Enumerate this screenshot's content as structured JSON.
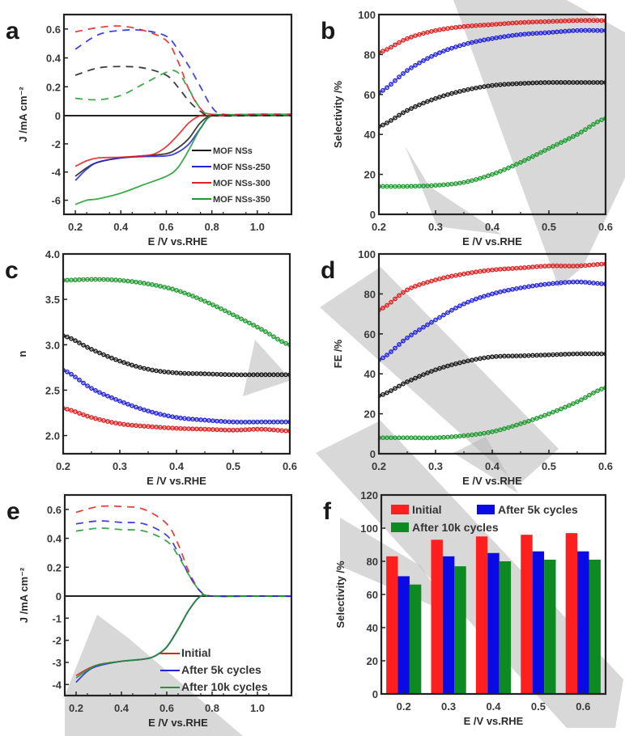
{
  "figure": {
    "watermark_color": "#b8b8b8"
  },
  "colors": {
    "black": "#1a1a1a",
    "blue": "#2222dd",
    "red": "#e02020",
    "green": "#1f9a2f",
    "bar_red": "#ff1f1f",
    "bar_blue": "#0a0ae6",
    "bar_green": "#0d8a22"
  },
  "chart_data": [
    {
      "id": "a",
      "panel_label": "a",
      "type": "line",
      "title": "",
      "xlabel": "E /V vs.RHE",
      "ylabel": "J /mA cm⁻²",
      "xlim": [
        0.15,
        1.15
      ],
      "ylim": [
        -7,
        0.7
      ],
      "xticks": [
        "0.2",
        "0.4",
        "0.6",
        "0.8",
        "1.0"
      ],
      "xtick_values": [
        0.2,
        0.4,
        0.6,
        0.8,
        1.0
      ],
      "yticks": [
        "0.6",
        "0.4",
        "0.2",
        "0",
        "-2",
        "-4",
        "-6"
      ],
      "ytick_values": [
        0.6,
        0.4,
        0.2,
        0,
        -2,
        -4,
        -6
      ],
      "note": "Broken y-scale: positive (ring) region 0–0.7 expanded, negative (disk) region 0 to −7 compressed",
      "legend": {
        "placement": "bottom-right",
        "entries": [
          "MOF NSs",
          "MOF NSs-250",
          "MOF NSs-300",
          "MOF NSs-350"
        ]
      },
      "series": [
        {
          "name": "MOF NSs",
          "color_key": "black",
          "style": "solid",
          "x": [
            0.2,
            0.25,
            0.3,
            0.4,
            0.5,
            0.6,
            0.65,
            0.7,
            0.75,
            0.8,
            0.9,
            1.0,
            1.15
          ],
          "y": [
            -4.3,
            -3.7,
            -3.3,
            -3.0,
            -2.85,
            -2.7,
            -2.3,
            -1.6,
            -0.5,
            0,
            0,
            0,
            0
          ]
        },
        {
          "name": "MOF NSs-250",
          "color_key": "blue",
          "style": "solid",
          "x": [
            0.2,
            0.25,
            0.3,
            0.4,
            0.5,
            0.6,
            0.65,
            0.7,
            0.75,
            0.8,
            0.9,
            1.0,
            1.15
          ],
          "y": [
            -4.6,
            -3.8,
            -3.3,
            -3.0,
            -2.9,
            -2.85,
            -2.6,
            -2.0,
            -0.9,
            0,
            0,
            0,
            0
          ]
        },
        {
          "name": "MOF NSs-300",
          "color_key": "red",
          "style": "solid",
          "x": [
            0.2,
            0.25,
            0.3,
            0.4,
            0.5,
            0.55,
            0.6,
            0.65,
            0.7,
            0.75,
            0.8,
            1.0,
            1.15
          ],
          "y": [
            -3.6,
            -3.2,
            -3.0,
            -2.95,
            -2.85,
            -2.7,
            -2.2,
            -1.4,
            -0.5,
            0,
            0,
            0,
            0
          ]
        },
        {
          "name": "MOF NSs-350",
          "color_key": "green",
          "style": "solid",
          "x": [
            0.2,
            0.25,
            0.3,
            0.4,
            0.5,
            0.6,
            0.65,
            0.7,
            0.75,
            0.8,
            0.9,
            1.0,
            1.15
          ],
          "y": [
            -6.3,
            -6.0,
            -5.9,
            -5.5,
            -4.9,
            -4.3,
            -3.7,
            -2.4,
            -0.9,
            0,
            0,
            0,
            0
          ]
        },
        {
          "name": "MOF NSs (ring)",
          "color_key": "black",
          "style": "dashed",
          "x": [
            0.2,
            0.3,
            0.4,
            0.5,
            0.6,
            0.65,
            0.7,
            0.75,
            0.8,
            1.0,
            1.15
          ],
          "y": [
            0.28,
            0.33,
            0.34,
            0.33,
            0.28,
            0.2,
            0.1,
            0.03,
            0.0,
            0.0,
            0.0
          ]
        },
        {
          "name": "MOF NSs-250 (ring)",
          "color_key": "blue",
          "style": "dashed",
          "x": [
            0.2,
            0.3,
            0.4,
            0.5,
            0.6,
            0.65,
            0.7,
            0.75,
            0.8,
            0.85,
            1.0,
            1.15
          ],
          "y": [
            0.46,
            0.56,
            0.59,
            0.59,
            0.55,
            0.46,
            0.34,
            0.2,
            0.06,
            0.01,
            0.01,
            0.01
          ]
        },
        {
          "name": "MOF NSs-300 (ring)",
          "color_key": "red",
          "style": "dashed",
          "x": [
            0.2,
            0.3,
            0.4,
            0.5,
            0.6,
            0.65,
            0.7,
            0.75,
            0.8,
            1.0,
            1.15
          ],
          "y": [
            0.58,
            0.61,
            0.62,
            0.59,
            0.52,
            0.38,
            0.18,
            0.05,
            0.01,
            0.01,
            0.01
          ]
        },
        {
          "name": "MOF NSs-350 (ring)",
          "color_key": "green",
          "style": "dashed",
          "x": [
            0.2,
            0.3,
            0.4,
            0.5,
            0.6,
            0.65,
            0.7,
            0.75,
            0.8,
            1.0,
            1.15
          ],
          "y": [
            0.12,
            0.11,
            0.14,
            0.22,
            0.3,
            0.3,
            0.18,
            0.05,
            0.01,
            0.01,
            0.01
          ]
        }
      ]
    },
    {
      "id": "b",
      "panel_label": "b",
      "type": "scatter",
      "title": "",
      "xlabel": "E /V vs.RHE",
      "ylabel": "Selectivity /%",
      "xlim": [
        0.2,
        0.6
      ],
      "ylim": [
        0,
        100
      ],
      "xticks": [
        "0.2",
        "0.3",
        "0.4",
        "0.5",
        "0.6"
      ],
      "xtick_values": [
        0.2,
        0.3,
        0.4,
        0.5,
        0.6
      ],
      "yticks": [
        "0",
        "20",
        "40",
        "60",
        "80",
        "100"
      ],
      "ytick_values": [
        0,
        20,
        40,
        60,
        80,
        100
      ],
      "series": [
        {
          "name": "MOF NSs-300",
          "color_key": "red",
          "x": [
            0.2,
            0.25,
            0.3,
            0.35,
            0.4,
            0.45,
            0.5,
            0.55,
            0.6
          ],
          "y": [
            81,
            88,
            92,
            94,
            95,
            96,
            96.5,
            97,
            97
          ]
        },
        {
          "name": "MOF NSs-250",
          "color_key": "blue",
          "x": [
            0.2,
            0.25,
            0.3,
            0.35,
            0.4,
            0.45,
            0.5,
            0.55,
            0.6
          ],
          "y": [
            61,
            72,
            80,
            85,
            88,
            90,
            91,
            92,
            92
          ]
        },
        {
          "name": "MOF NSs",
          "color_key": "black",
          "x": [
            0.2,
            0.25,
            0.3,
            0.35,
            0.4,
            0.45,
            0.5,
            0.55,
            0.6
          ],
          "y": [
            44,
            52,
            58,
            62,
            64.5,
            65.5,
            66,
            66,
            66
          ]
        },
        {
          "name": "MOF NSs-350",
          "color_key": "green",
          "x": [
            0.2,
            0.25,
            0.3,
            0.35,
            0.4,
            0.45,
            0.5,
            0.55,
            0.6
          ],
          "y": [
            14,
            14,
            14.5,
            16,
            20,
            26,
            33,
            40,
            48
          ]
        }
      ]
    },
    {
      "id": "c",
      "panel_label": "c",
      "type": "scatter",
      "title": "",
      "xlabel": "E /V vs.RHE",
      "ylabel": "n",
      "xlim": [
        0.2,
        0.6
      ],
      "ylim": [
        1.8,
        4.0
      ],
      "xticks": [
        "0.2",
        "0.3",
        "0.4",
        "0.5",
        "0.6"
      ],
      "xtick_values": [
        0.2,
        0.3,
        0.4,
        0.5,
        0.6
      ],
      "yticks": [
        "2.0",
        "2.5",
        "3.0",
        "3.5",
        "4.0"
      ],
      "ytick_values": [
        2.0,
        2.5,
        3.0,
        3.5,
        4.0
      ],
      "series": [
        {
          "name": "MOF NSs-350",
          "color_key": "green",
          "x": [
            0.2,
            0.25,
            0.3,
            0.35,
            0.4,
            0.45,
            0.5,
            0.55,
            0.6
          ],
          "y": [
            3.71,
            3.72,
            3.71,
            3.67,
            3.6,
            3.48,
            3.33,
            3.17,
            3.0
          ]
        },
        {
          "name": "MOF NSs",
          "color_key": "black",
          "x": [
            0.2,
            0.25,
            0.3,
            0.35,
            0.4,
            0.45,
            0.5,
            0.55,
            0.6
          ],
          "y": [
            3.1,
            2.95,
            2.82,
            2.73,
            2.69,
            2.68,
            2.67,
            2.67,
            2.67
          ]
        },
        {
          "name": "MOF NSs-250",
          "color_key": "blue",
          "x": [
            0.2,
            0.25,
            0.3,
            0.35,
            0.4,
            0.45,
            0.5,
            0.55,
            0.6
          ],
          "y": [
            2.72,
            2.52,
            2.38,
            2.27,
            2.2,
            2.17,
            2.15,
            2.15,
            2.15
          ]
        },
        {
          "name": "MOF NSs-300",
          "color_key": "red",
          "x": [
            0.2,
            0.25,
            0.3,
            0.35,
            0.4,
            0.45,
            0.5,
            0.55,
            0.6
          ],
          "y": [
            2.3,
            2.2,
            2.13,
            2.1,
            2.08,
            2.07,
            2.06,
            2.07,
            2.05
          ]
        }
      ]
    },
    {
      "id": "d",
      "panel_label": "d",
      "type": "scatter",
      "title": "",
      "xlabel": "E /V vs.RHE",
      "ylabel": "FE /%",
      "xlim": [
        0.2,
        0.6
      ],
      "ylim": [
        0,
        100
      ],
      "xticks": [
        "0.2",
        "0.3",
        "0.4",
        "0.5",
        "0.6"
      ],
      "xtick_values": [
        0.2,
        0.3,
        0.4,
        0.5,
        0.6
      ],
      "yticks": [
        "0",
        "20",
        "40",
        "60",
        "80",
        "100"
      ],
      "ytick_values": [
        0,
        20,
        40,
        60,
        80,
        100
      ],
      "series": [
        {
          "name": "MOF NSs-300",
          "color_key": "red",
          "x": [
            0.2,
            0.25,
            0.3,
            0.35,
            0.4,
            0.45,
            0.5,
            0.55,
            0.6
          ],
          "y": [
            72,
            82,
            87,
            90,
            92,
            93,
            94,
            94,
            95
          ]
        },
        {
          "name": "MOF NSs-250",
          "color_key": "blue",
          "x": [
            0.2,
            0.25,
            0.3,
            0.35,
            0.4,
            0.45,
            0.5,
            0.55,
            0.6
          ],
          "y": [
            47,
            58,
            67,
            75,
            80,
            83,
            85,
            86,
            85
          ]
        },
        {
          "name": "MOF NSs",
          "color_key": "black",
          "x": [
            0.2,
            0.25,
            0.3,
            0.35,
            0.4,
            0.45,
            0.5,
            0.55,
            0.6
          ],
          "y": [
            29,
            36,
            42,
            46,
            48.5,
            49,
            49.5,
            50,
            50
          ]
        },
        {
          "name": "MOF NSs-350",
          "color_key": "green",
          "x": [
            0.2,
            0.25,
            0.3,
            0.35,
            0.4,
            0.45,
            0.5,
            0.55,
            0.6
          ],
          "y": [
            8,
            8,
            8,
            9,
            11,
            15,
            20,
            26,
            33
          ]
        }
      ]
    },
    {
      "id": "e",
      "panel_label": "e",
      "type": "line",
      "title": "",
      "xlabel": "E /V vs.RHE",
      "ylabel": "J /mA cm⁻²",
      "xlim": [
        0.15,
        1.15
      ],
      "ylim": [
        -4.5,
        0.7
      ],
      "xticks": [
        "0.2",
        "0.4",
        "0.6",
        "0.8",
        "1.0"
      ],
      "xtick_values": [
        0.2,
        0.4,
        0.6,
        0.8,
        1.0
      ],
      "yticks": [
        "0.6",
        "0.4",
        "0.2",
        "0",
        "-1",
        "-2",
        "-3",
        "-4"
      ],
      "ytick_values": [
        0.6,
        0.4,
        0.2,
        0,
        -1,
        -2,
        -3,
        -4
      ],
      "note": "Broken y-scale: positive (ring) region expanded, negative (disk) region compressed",
      "legend": {
        "placement": "bottom-right",
        "entries": [
          "Initial",
          "After 5k cycles",
          "After 10k cycles"
        ]
      },
      "series": [
        {
          "name": "Initial",
          "color_key": "red",
          "style": "solid",
          "x": [
            0.2,
            0.25,
            0.3,
            0.4,
            0.5,
            0.55,
            0.6,
            0.65,
            0.7,
            0.75,
            0.8,
            1.0,
            1.15
          ],
          "y": [
            -3.6,
            -3.3,
            -3.1,
            -2.95,
            -2.85,
            -2.7,
            -2.3,
            -1.5,
            -0.6,
            0,
            0,
            0,
            0
          ]
        },
        {
          "name": "After 5k cycles",
          "color_key": "blue",
          "style": "solid",
          "x": [
            0.2,
            0.25,
            0.3,
            0.4,
            0.5,
            0.55,
            0.6,
            0.65,
            0.7,
            0.75,
            0.8,
            1.0,
            1.15
          ],
          "y": [
            -3.9,
            -3.4,
            -3.15,
            -2.95,
            -2.85,
            -2.7,
            -2.3,
            -1.5,
            -0.6,
            0,
            0,
            0,
            0
          ]
        },
        {
          "name": "After 10k cycles",
          "color_key": "green",
          "style": "solid",
          "x": [
            0.2,
            0.25,
            0.3,
            0.4,
            0.5,
            0.55,
            0.6,
            0.65,
            0.7,
            0.75,
            0.8,
            1.0,
            1.15
          ],
          "y": [
            -3.7,
            -3.35,
            -3.1,
            -2.95,
            -2.85,
            -2.7,
            -2.3,
            -1.5,
            -0.6,
            0,
            0,
            0,
            0
          ]
        },
        {
          "name": "Initial (ring)",
          "color_key": "red",
          "style": "dashed",
          "x": [
            0.2,
            0.3,
            0.4,
            0.5,
            0.6,
            0.65,
            0.7,
            0.75,
            0.8,
            1.0,
            1.15
          ],
          "y": [
            0.58,
            0.62,
            0.62,
            0.6,
            0.5,
            0.36,
            0.16,
            0.03,
            0.0,
            0.0,
            -0.01
          ]
        },
        {
          "name": "After 5k cycles (ring)",
          "color_key": "blue",
          "style": "dashed",
          "x": [
            0.2,
            0.3,
            0.4,
            0.5,
            0.6,
            0.65,
            0.7,
            0.75,
            0.8,
            1.0,
            1.15
          ],
          "y": [
            0.5,
            0.52,
            0.51,
            0.5,
            0.42,
            0.3,
            0.14,
            0.03,
            0.0,
            0.0,
            -0.01
          ]
        },
        {
          "name": "After 10k cycles (ring)",
          "color_key": "green",
          "style": "dashed",
          "x": [
            0.2,
            0.3,
            0.4,
            0.5,
            0.6,
            0.65,
            0.7,
            0.75,
            0.8,
            1.0,
            1.15
          ],
          "y": [
            0.45,
            0.47,
            0.46,
            0.45,
            0.38,
            0.28,
            0.14,
            0.03,
            0.0,
            0.0,
            -0.01
          ]
        }
      ]
    },
    {
      "id": "f",
      "panel_label": "f",
      "type": "bar",
      "title": "",
      "xlabel": "E /V vs.RHE",
      "ylabel": "Selectivity /%",
      "ylim": [
        0,
        120
      ],
      "categories": [
        "0.2",
        "0.3",
        "0.4",
        "0.5",
        "0.6"
      ],
      "yticks": [
        "0",
        "20",
        "40",
        "60",
        "80",
        "100",
        "120"
      ],
      "ytick_values": [
        0,
        20,
        40,
        60,
        80,
        100,
        120
      ],
      "legend": {
        "placement": "top-left",
        "entries": [
          "Initial",
          "After 5k cycles",
          "After 10k cycles"
        ]
      },
      "series": [
        {
          "name": "Initial",
          "color_key": "bar_red",
          "values": [
            83,
            93,
            95,
            96,
            97
          ]
        },
        {
          "name": "After 5k cycles",
          "color_key": "bar_blue",
          "values": [
            71,
            83,
            85,
            86,
            86
          ]
        },
        {
          "name": "After 10k cycles",
          "color_key": "bar_green",
          "values": [
            66,
            77,
            80,
            81,
            81
          ]
        }
      ]
    }
  ]
}
